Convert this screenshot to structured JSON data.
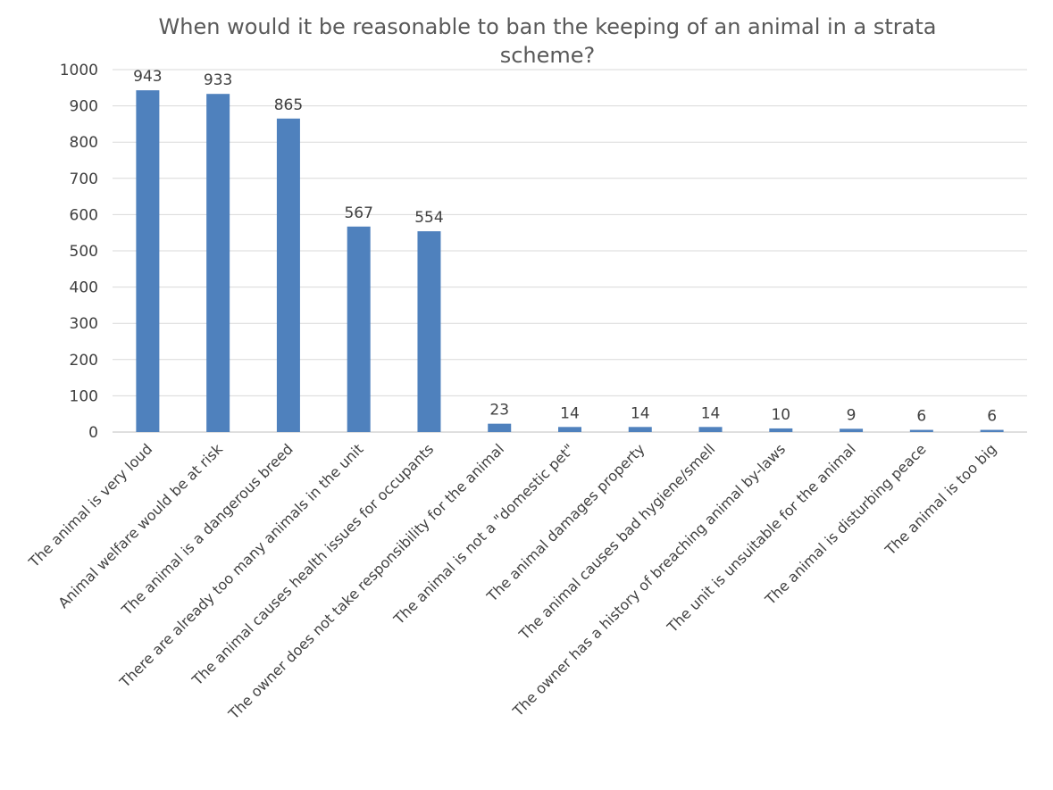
{
  "chart_data": {
    "type": "bar",
    "title": "When would it be reasonable to ban the keeping of an animal in a strata scheme?",
    "xlabel": "",
    "ylabel": "",
    "ylim": [
      0,
      1000
    ],
    "yticks": [
      0,
      100,
      200,
      300,
      400,
      500,
      600,
      700,
      800,
      900,
      1000
    ],
    "grid": true,
    "legend": "none",
    "bar_color": "#4f81bd",
    "categories": [
      "The animal is very loud",
      "Animal welfare would be at risk",
      "The animal is a dangerous breed",
      "There are already too many animals in the unit",
      "The animal causes health issues for occupants",
      "The owner does not take responsibility for the animal",
      "The animal is not a \"domestic pet\"",
      "The animal damages property",
      "The animal causes bad hygiene/smell",
      "The owner has a history of breaching animal by-laws",
      "The unit is unsuitable for the animal",
      "The animal is disturbing peace",
      "The animal is too big"
    ],
    "values": [
      943,
      933,
      865,
      567,
      554,
      23,
      14,
      14,
      14,
      10,
      9,
      6,
      6
    ]
  }
}
